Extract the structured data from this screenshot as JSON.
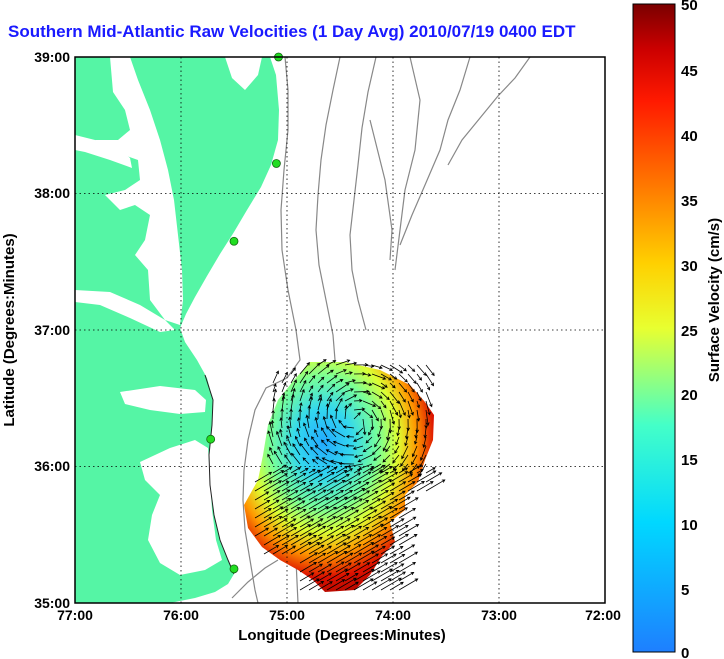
{
  "title": "Southern Mid-Atlantic Raw Velocities (1 Day Avg) 2010/07/19 0400 EDT",
  "x_axis": {
    "label": "Longitude (Degrees:Minutes)",
    "ticks": [
      "77:00",
      "76:00",
      "75:00",
      "74:00",
      "73:00",
      "72:00"
    ]
  },
  "y_axis": {
    "label": "Latitude (Degrees:Minutes)",
    "ticks": [
      "39:00",
      "38:00",
      "37:00",
      "36:00",
      "35:00"
    ]
  },
  "colorbar": {
    "label": "Surface Velocity (cm/s)",
    "ticks": [
      "50",
      "45",
      "40",
      "35",
      "30",
      "25",
      "20",
      "15",
      "10",
      "5",
      "0"
    ],
    "min": 0,
    "max": 50
  },
  "colors": {
    "land": "#55f5a5",
    "water": "#ffffff",
    "title": "#1a1aff",
    "stations": "#22dd22",
    "bathymetry": "#888888"
  },
  "extent": {
    "lon": [
      -77,
      -72
    ],
    "lat": [
      35,
      39
    ]
  },
  "stations": [
    {
      "lon": -75.08,
      "lat": 39.0
    },
    {
      "lon": -75.1,
      "lat": 38.22
    },
    {
      "lon": -75.5,
      "lat": 37.65
    },
    {
      "lon": -75.72,
      "lat": 36.2
    },
    {
      "lon": -75.5,
      "lat": 35.25
    }
  ]
}
